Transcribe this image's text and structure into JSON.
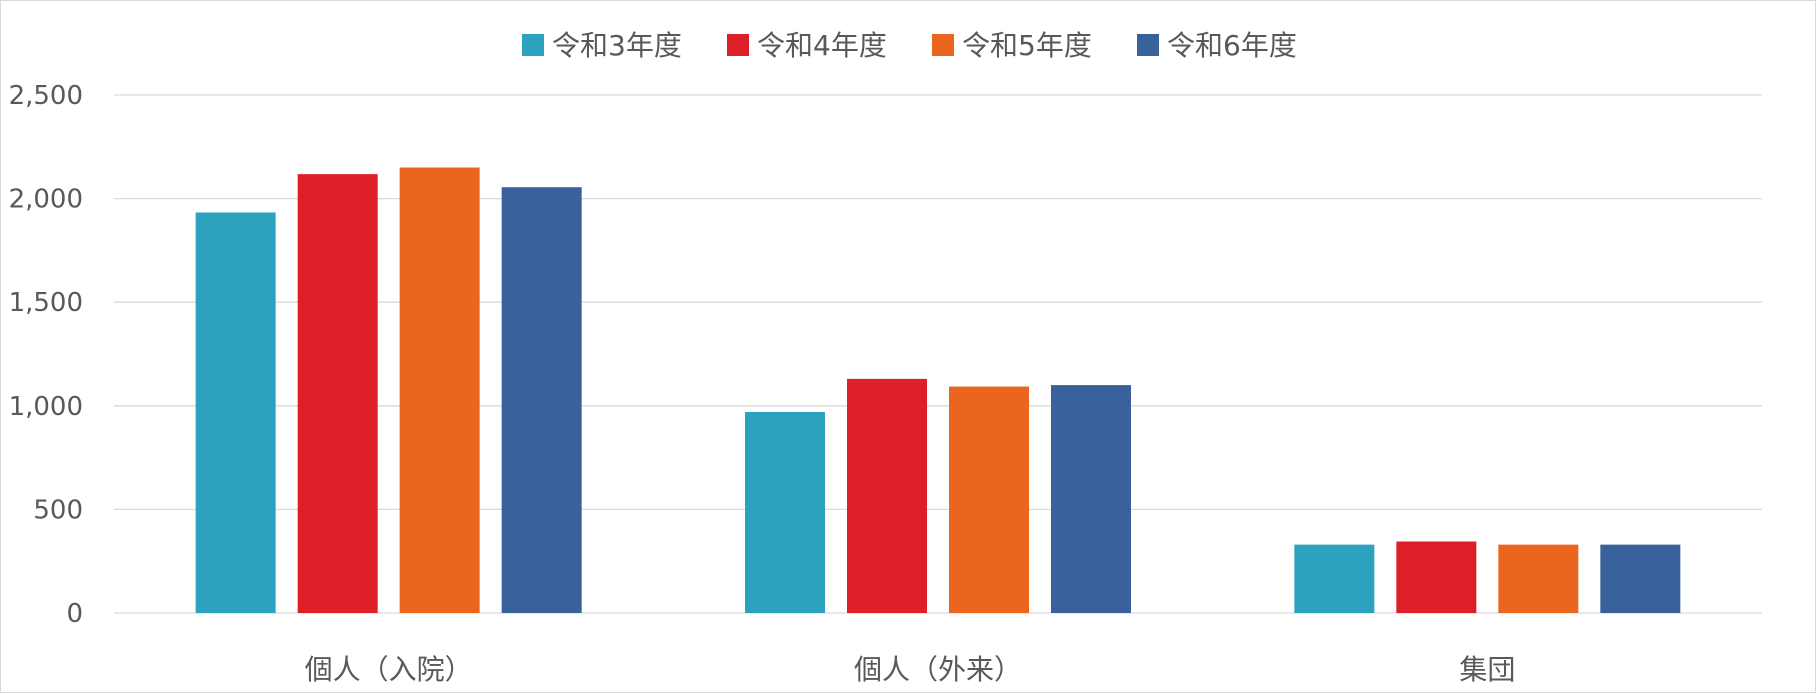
{
  "chart_data": {
    "type": "bar",
    "categories": [
      "個人（入院）",
      "個人（外来）",
      "集団"
    ],
    "series": [
      {
        "name": "令和3年度",
        "color": "#2ca2be",
        "values": [
          1933,
          970,
          330
        ]
      },
      {
        "name": "令和4年度",
        "color": "#dc1f28",
        "values": [
          2118,
          1130,
          345
        ]
      },
      {
        "name": "令和5年度",
        "color": "#ea661f",
        "values": [
          2150,
          1093,
          330
        ]
      },
      {
        "name": "令和6年度",
        "color": "#39629c",
        "values": [
          2055,
          1100,
          330
        ]
      }
    ],
    "ylim": [
      0,
      2500
    ],
    "yticks": [
      "0",
      "500",
      "1,000",
      "1,500",
      "2,000",
      "2,500"
    ],
    "ytick_values": [
      0,
      500,
      1000,
      1500,
      2000,
      2500
    ],
    "grid": true,
    "legend_position": "top"
  }
}
